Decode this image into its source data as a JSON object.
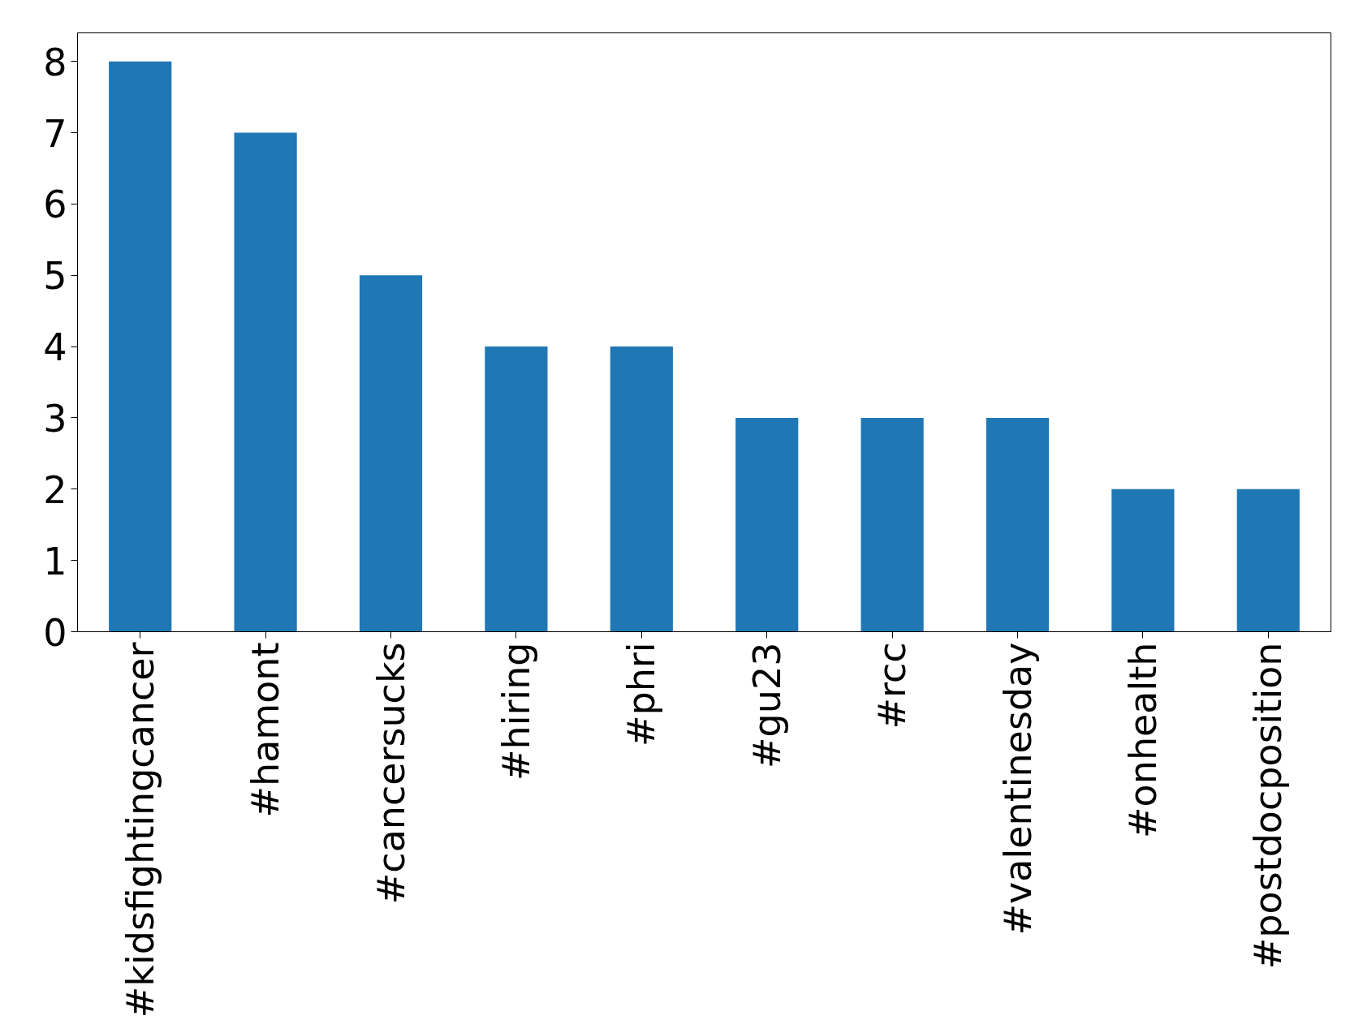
{
  "chart_data": {
    "type": "bar",
    "categories": [
      "#kidsfightingcancer",
      "#hamont",
      "#cancersucks",
      "#hiring",
      "#phri",
      "#gu23",
      "#rcc",
      "#valentinesday",
      "#onhealth",
      "#postdocposition"
    ],
    "values": [
      8,
      7,
      5,
      4,
      4,
      3,
      3,
      3,
      2,
      2
    ],
    "color": "#1f77b4",
    "ylim": [
      0,
      8.4
    ],
    "yticks": [
      0,
      1,
      2,
      3,
      4,
      5,
      6,
      7,
      8
    ],
    "grid": false
  }
}
